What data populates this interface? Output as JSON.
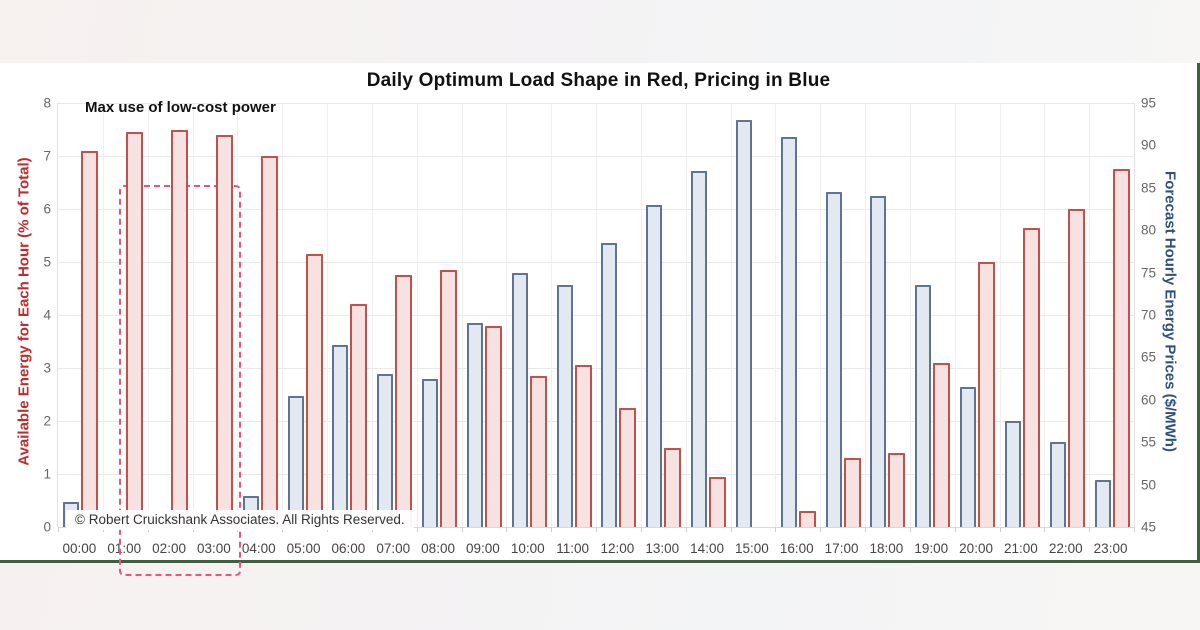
{
  "page": {
    "title": "Daily Optimum Load Shape in Red, Pricing in Blue",
    "annotation": "Max use of low-cost power",
    "copyright": "© Robert Cruickshank Associates. All Rights Reserved."
  },
  "chart_data": {
    "type": "bar",
    "title": "Daily Optimum Load Shape in Red, Pricing in Blue",
    "categories": [
      "00:00",
      "01:00",
      "02:00",
      "03:00",
      "04:00",
      "05:00",
      "06:00",
      "07:00",
      "08:00",
      "09:00",
      "10:00",
      "11:00",
      "12:00",
      "13:00",
      "14:00",
      "15:00",
      "16:00",
      "17:00",
      "18:00",
      "19:00",
      "20:00",
      "21:00",
      "22:00",
      "23:00"
    ],
    "series": [
      {
        "name": "Optimum Load Shape (red bars)",
        "axis": "left",
        "units": "% of Total",
        "fill": "#f7e2e2",
        "border": "#c5504b",
        "values": [
          7.1,
          7.45,
          7.5,
          7.4,
          7.0,
          5.15,
          4.2,
          4.75,
          4.85,
          3.8,
          2.85,
          3.05,
          2.25,
          1.5,
          0.95,
          0,
          0.3,
          1.3,
          1.4,
          3.1,
          5.0,
          5.65,
          6.0,
          6.75
        ]
      },
      {
        "name": "Forecast Hourly Energy Prices (blue bars)",
        "axis": "right",
        "units": "$/MWh",
        "fill": "#e3e9f1",
        "border": "#5f7392",
        "values": [
          48,
          46,
          46,
          46,
          48.6,
          60.5,
          66.5,
          63,
          62.5,
          69,
          75,
          73.5,
          78.5,
          83,
          87,
          93,
          91,
          84.5,
          84,
          73.5,
          61.5,
          57.5,
          55,
          50.5
        ]
      }
    ],
    "left_axis": {
      "label": "Available Energy for Each Hour (% of Total)",
      "min": 0,
      "max": 8,
      "tick_step": 1,
      "ticks": [
        0,
        1,
        2,
        3,
        4,
        5,
        6,
        7,
        8
      ],
      "color": "#c52a2a"
    },
    "right_axis": {
      "label": "Forecast Hourly Energy Prices ($/MWh)",
      "min": 45,
      "max": 95,
      "tick_step": 5,
      "ticks": [
        45,
        50,
        55,
        60,
        65,
        70,
        75,
        80,
        85,
        90,
        95
      ],
      "color": "#2f4f7d"
    },
    "annotation": {
      "text": "Max use of low-cost power",
      "box_from_hour": "01:00",
      "box_to_hour": "03:00",
      "box_color": "#f1527b"
    },
    "grid": true,
    "legend_position": "none"
  }
}
